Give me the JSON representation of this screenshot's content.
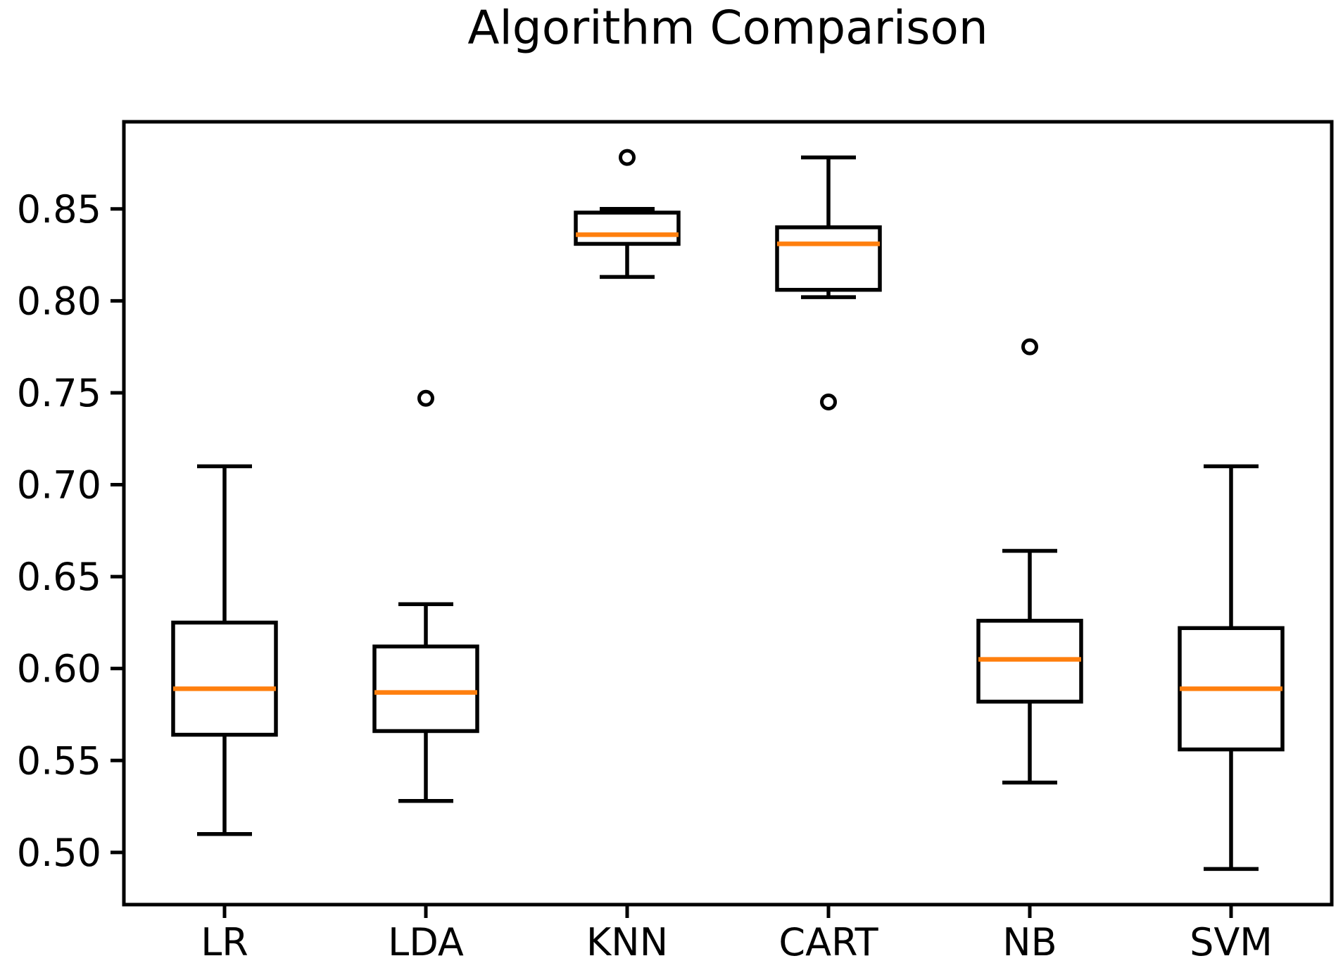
{
  "chart_data": {
    "type": "boxplot",
    "title": "Algorithm Comparison",
    "xlabel": "",
    "ylabel": "",
    "categories": [
      "LR",
      "LDA",
      "KNN",
      "CART",
      "NB",
      "SVM"
    ],
    "series": [
      {
        "name": "LR",
        "whislo": 0.51,
        "q1": 0.564,
        "med": 0.589,
        "q3": 0.625,
        "whishi": 0.71,
        "fliers": []
      },
      {
        "name": "LDA",
        "whislo": 0.528,
        "q1": 0.566,
        "med": 0.587,
        "q3": 0.612,
        "whishi": 0.635,
        "fliers": [
          0.747
        ]
      },
      {
        "name": "KNN",
        "whislo": 0.813,
        "q1": 0.831,
        "med": 0.836,
        "q3": 0.848,
        "whishi": 0.85,
        "fliers": [
          0.878
        ]
      },
      {
        "name": "CART",
        "whislo": 0.802,
        "q1": 0.806,
        "med": 0.831,
        "q3": 0.84,
        "whishi": 0.878,
        "fliers": [
          0.745
        ]
      },
      {
        "name": "NB",
        "whislo": 0.538,
        "q1": 0.582,
        "med": 0.605,
        "q3": 0.626,
        "whishi": 0.664,
        "fliers": [
          0.775
        ]
      },
      {
        "name": "SVM",
        "whislo": 0.491,
        "q1": 0.556,
        "med": 0.589,
        "q3": 0.622,
        "whishi": 0.71,
        "fliers": []
      }
    ],
    "ylim": [
      0.4716,
      0.8974
    ],
    "yticks": [
      0.5,
      0.55,
      0.6,
      0.65,
      0.7,
      0.75,
      0.8,
      0.85
    ],
    "ytick_labels": [
      "0.50",
      "0.55",
      "0.60",
      "0.65",
      "0.70",
      "0.75",
      "0.80",
      "0.85"
    ],
    "grid": false,
    "legend": "none",
    "box_line_color": "#000000",
    "median_color": "#ff7f0e",
    "background_color": "#ffffff"
  }
}
